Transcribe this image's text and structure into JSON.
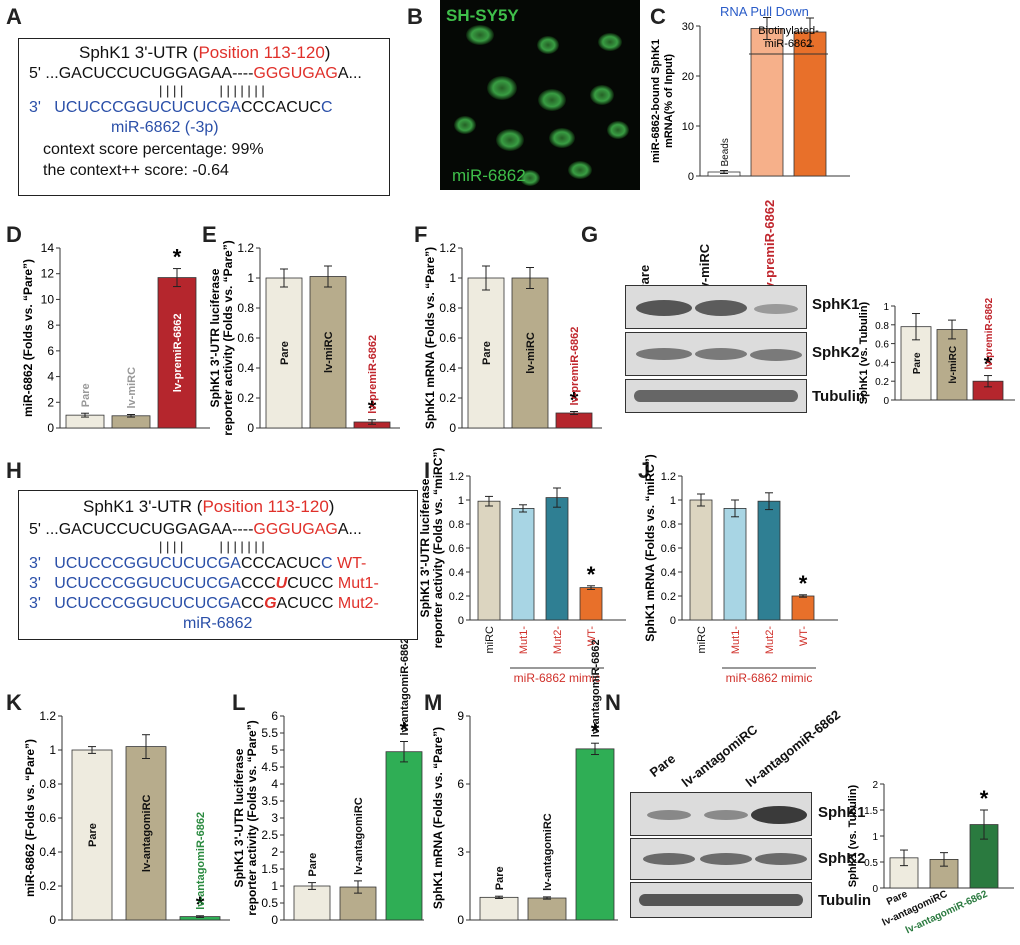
{
  "letters": [
    "A",
    "B",
    "C",
    "D",
    "E",
    "F",
    "G",
    "H",
    "I",
    "J",
    "K",
    "L",
    "M",
    "N"
  ],
  "seqA": {
    "title_prefix": "SphK1 3'-UTR (",
    "title_pos": "Position 113-120",
    "title_suffix": ")",
    "line1_prefix": "5' ...GACUCCUCUGGAGAA----",
    "line1_red": "GGGUGAG",
    "line1_suffix": "A...",
    "bars": "| | | |          | | | | | | |",
    "line2_prime": "3'",
    "line2_blue": "UCUCCCGGUCUCUCGA",
    "line2_black": "CCCACUC",
    "line2_end": "C",
    "mirna": "miR-6862 (-3p)",
    "score1": "context score percentage: 99%",
    "score2": "the context++ score: -0.64"
  },
  "micro": {
    "cell_line": "SH-SY5Y",
    "label": "miR-6862"
  },
  "panelC": {
    "title": "RNA Pull Down",
    "bracket_label": "Biotinylated-\nmiR-6862",
    "bead_label": "Beads"
  },
  "seqH": {
    "title_prefix": "SphK1 3'-UTR (",
    "title_pos": "Position 113-120",
    "title_suffix": ")",
    "line1_prefix": "5' ...GACUCCUCUGGAGAA----",
    "line1_red": "GGGUGAG",
    "line1_suffix": "A...",
    "bars": "| | | |          | | | | | | |",
    "rows": [
      {
        "prime": "3'",
        "blue": "UCUCCCGGUCUCUCGA",
        "a": "CCCACUC",
        "mut": "",
        "b": "",
        "end": "C",
        "tag": "WT-"
      },
      {
        "prime": "3'",
        "blue": "UCUCCCGGUCUCUCGA",
        "a": "CCC",
        "mut": "U",
        "b": "CUCC",
        "end": "",
        "tag": "Mut1-"
      },
      {
        "prime": "3'",
        "blue": "UCUCCCGGUCUCUCGA",
        "a": "CC",
        "mut": "G",
        "b": "ACUCC",
        "end": "",
        "tag": "Mut2-"
      }
    ],
    "mirna": "miR-6862"
  },
  "blotG": {
    "lanes": [
      "Pare",
      "lv-miRC",
      "lv-premiR-6862"
    ],
    "rows": [
      "SphK1",
      "SphK2",
      "Tubulin"
    ]
  },
  "blotN": {
    "lanes": [
      "Pare",
      "lv-antagomiRC",
      "lv-antagomiR-6862"
    ],
    "rows": [
      "SphK1",
      "SphK2",
      "Tubulin"
    ]
  },
  "chart_data": [
    {
      "panel": "C",
      "type": "bar",
      "ylabel": "miR-6862-bound SphK1\nmRNA(% of Input)",
      "ylim": [
        0,
        30
      ],
      "yticks": [
        0,
        10,
        20,
        30
      ],
      "categories": [
        "Beads",
        "",
        ""
      ],
      "values": [
        0.8,
        29.5,
        28.8
      ],
      "errors": [
        0.3,
        2.2,
        2.8
      ],
      "colors": [
        "#ffffff",
        "#f6b08a",
        "#e8702a"
      ],
      "bar_labels": [
        "",
        "",
        ""
      ],
      "stars": [
        false,
        false,
        false
      ]
    },
    {
      "panel": "D",
      "type": "bar",
      "ylabel": "miR-6862 (Folds vs. “Pare”)",
      "ylim": [
        0,
        14
      ],
      "yticks": [
        0,
        2,
        4,
        6,
        8,
        10,
        12,
        14
      ],
      "categories": [
        "Pare",
        "lv-miRC",
        "lv-premiR-6862"
      ],
      "values": [
        1.0,
        0.95,
        11.7
      ],
      "errors": [
        0.15,
        0.1,
        0.7
      ],
      "colors": [
        "#eeebdf",
        "#b7ac8c",
        "#b5262d"
      ],
      "bar_labels": [
        "Pare",
        "lv-miRC",
        "lv-premiR-6862"
      ],
      "label_colors": [
        "#999999",
        "#999999",
        "#ffffff"
      ],
      "stars": [
        false,
        false,
        true
      ]
    },
    {
      "panel": "E",
      "type": "bar",
      "ylabel": "SphK1 3'-UTR luciferase\nreporter activity (Folds vs. “Pare”)",
      "ylim": [
        0,
        1.2
      ],
      "yticks": [
        0,
        0.2,
        0.4,
        0.6,
        0.8,
        1,
        1.2
      ],
      "categories": [
        "Pare",
        "lv-miRC",
        "lv-premiR-6862"
      ],
      "values": [
        1.0,
        1.01,
        0.04
      ],
      "errors": [
        0.06,
        0.07,
        0.015
      ],
      "colors": [
        "#eeebdf",
        "#b7ac8c",
        "#b5262d"
      ],
      "bar_labels": [
        "Pare",
        "lv-miRC",
        "lv-premiR-6862"
      ],
      "label_colors": [
        "#111111",
        "#111111",
        "#c0262d"
      ],
      "stars": [
        false,
        false,
        true
      ]
    },
    {
      "panel": "F",
      "type": "bar",
      "ylabel": "SphK1 mRNA (Folds vs. “Pare”)",
      "ylim": [
        0,
        1.2
      ],
      "yticks": [
        0,
        0.2,
        0.4,
        0.6,
        0.8,
        1,
        1.2
      ],
      "categories": [
        "Pare",
        "lv-miRC",
        "lv-premiR-6862"
      ],
      "values": [
        1.0,
        1.0,
        0.1
      ],
      "errors": [
        0.08,
        0.07,
        0.01
      ],
      "colors": [
        "#eeebdf",
        "#b7ac8c",
        "#b5262d"
      ],
      "bar_labels": [
        "Pare",
        "lv-miRC",
        "lv-premiR-6862"
      ],
      "label_colors": [
        "#111111",
        "#111111",
        "#c0262d"
      ],
      "stars": [
        false,
        false,
        true
      ]
    },
    {
      "panel": "G",
      "type": "bar",
      "ylabel": "SphK1 (vs. Tubulin)",
      "ylim": [
        0,
        1
      ],
      "yticks": [
        0,
        0.2,
        0.4,
        0.6,
        0.8,
        1
      ],
      "categories": [
        "Pare",
        "lv-miRC",
        "lv-premiR-6862"
      ],
      "values": [
        0.78,
        0.75,
        0.2
      ],
      "errors": [
        0.14,
        0.1,
        0.06
      ],
      "colors": [
        "#eeebdf",
        "#b7ac8c",
        "#b5262d"
      ],
      "bar_labels": [
        "Pare",
        "lv-miRC",
        "lv-premiR-6862"
      ],
      "label_colors": [
        "#111111",
        "#111111",
        "#c0262d"
      ],
      "stars": [
        false,
        false,
        true
      ]
    },
    {
      "panel": "I",
      "type": "bar",
      "ylabel": "SphK1 3'-UTR luciferase\nreporter activity (Folds vs. “miRC”)",
      "ylim": [
        0,
        1.2
      ],
      "yticks": [
        0,
        0.2,
        0.4,
        0.6,
        0.8,
        1,
        1.2
      ],
      "categories": [
        "miRC",
        "Mut1-",
        "Mut2-",
        "WT-"
      ],
      "values": [
        0.99,
        0.93,
        1.02,
        0.27
      ],
      "errors": [
        0.04,
        0.03,
        0.08,
        0.015
      ],
      "colors": [
        "#dcd5c0",
        "#a8d5e4",
        "#2f7f93",
        "#e8702a"
      ],
      "bar_labels": [
        "",
        "",
        "",
        ""
      ],
      "stars": [
        false,
        false,
        false,
        true
      ],
      "cat_colors": [
        "#111111",
        "#d0302a",
        "#d0302a",
        "#d0302a"
      ],
      "group_label": "miR-6862 mimic"
    },
    {
      "panel": "J",
      "type": "bar",
      "ylabel": "SphK1 mRNA (Folds vs. “miRC”)",
      "ylim": [
        0,
        1.2
      ],
      "yticks": [
        0,
        0.2,
        0.4,
        0.6,
        0.8,
        1,
        1.2
      ],
      "categories": [
        "miRC",
        "Mut1-",
        "Mut2-",
        "WT-"
      ],
      "values": [
        1.0,
        0.93,
        0.99,
        0.2
      ],
      "errors": [
        0.05,
        0.07,
        0.07,
        0.01
      ],
      "colors": [
        "#dcd5c0",
        "#a8d5e4",
        "#2f7f93",
        "#e8702a"
      ],
      "bar_labels": [
        "",
        "",
        "",
        ""
      ],
      "stars": [
        false,
        false,
        false,
        true
      ],
      "cat_colors": [
        "#111111",
        "#d0302a",
        "#d0302a",
        "#d0302a"
      ],
      "group_label": "miR-6862 mimic"
    },
    {
      "panel": "K",
      "type": "bar",
      "ylabel": "miR-6862 (Folds vs. “Pare”)",
      "ylim": [
        0,
        1.2
      ],
      "yticks": [
        0,
        0.2,
        0.4,
        0.6,
        0.8,
        1,
        1.2
      ],
      "categories": [
        "Pare",
        "lv-antagomiRC",
        "lv-antagomiR-6862"
      ],
      "values": [
        1.0,
        1.02,
        0.02
      ],
      "errors": [
        0.02,
        0.07,
        0.005
      ],
      "colors": [
        "#eeebdf",
        "#b7ac8c",
        "#2fae55"
      ],
      "bar_labels": [
        "Pare",
        "lv-antagomiRC",
        "lv-antagomiR-6862"
      ],
      "label_colors": [
        "#111111",
        "#111111",
        "#2a8a3f"
      ],
      "stars": [
        false,
        false,
        true
      ]
    },
    {
      "panel": "L",
      "type": "bar",
      "ylabel": "SphK1 3'-UTR luciferase\nreporter activity (Folds vs. “Pare”)",
      "ylim": [
        0,
        6
      ],
      "yticks": [
        0,
        0.5,
        1,
        1.5,
        2,
        2.5,
        3,
        3.5,
        4,
        4.5,
        5,
        5.5,
        6
      ],
      "categories": [
        "Pare",
        "lv-antagomiRC",
        "lv-antagomiR-6862"
      ],
      "values": [
        1.0,
        0.97,
        4.95
      ],
      "errors": [
        0.1,
        0.18,
        0.3
      ],
      "colors": [
        "#eeebdf",
        "#b7ac8c",
        "#2fae55"
      ],
      "bar_labels": [
        "Pare",
        "lv-antagomiRC",
        "lv-antagomiR-6862"
      ],
      "label_colors": [
        "#111111",
        "#111111",
        "#111111"
      ],
      "stars": [
        false,
        false,
        true
      ],
      "label_above": true
    },
    {
      "panel": "M",
      "type": "bar",
      "ylabel": "SphK1 mRNA (Folds vs. “Pare”)",
      "ylim": [
        0,
        9
      ],
      "yticks": [
        0,
        3,
        6,
        9
      ],
      "categories": [
        "Pare",
        "lv-antagomiRC",
        "lv-antagomiR-6862"
      ],
      "values": [
        1.0,
        0.97,
        7.55
      ],
      "errors": [
        0.05,
        0.05,
        0.25
      ],
      "colors": [
        "#eeebdf",
        "#b7ac8c",
        "#2fae55"
      ],
      "bar_labels": [
        "Pare",
        "lv-antagomiRC",
        "lv-antagomiR-6862"
      ],
      "label_colors": [
        "#111111",
        "#111111",
        "#111111"
      ],
      "stars": [
        false,
        false,
        true
      ],
      "label_above": true
    },
    {
      "panel": "N",
      "type": "bar",
      "ylabel": "SphK1 (vs. Tubulin)",
      "ylim": [
        0,
        2
      ],
      "yticks": [
        0,
        0.5,
        1,
        1.5,
        2
      ],
      "categories": [
        "Pare",
        "lv-antagomiRC",
        "lv-antagomiR-6862"
      ],
      "values": [
        0.58,
        0.55,
        1.22
      ],
      "errors": [
        0.15,
        0.13,
        0.28
      ],
      "colors": [
        "#eeebdf",
        "#b7ac8c",
        "#2a7a3f"
      ],
      "bar_labels": [
        "",
        "",
        ""
      ],
      "stars": [
        false,
        false,
        true
      ],
      "cat_colors": [
        "#111111",
        "#111111",
        "#2a7a3f"
      ]
    }
  ]
}
